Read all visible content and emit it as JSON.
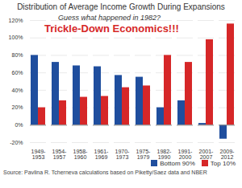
{
  "chart_data": {
    "type": "bar",
    "title": "Distribution of Average Income Growth During Expansions",
    "annotations": [
      "Guess what happened in 1982?",
      "Trickle-Down Economics!!!"
    ],
    "source": "Source: Pavlina R. Tcherneva calculations based on Piketty/Saez data and NBER",
    "categories": [
      "1949-1953",
      "1954-1957",
      "1958-1960",
      "1961-1969",
      "1970-1973",
      "1975-1979",
      "1982-1990",
      "1991-2000",
      "2001-2007",
      "2009-2012"
    ],
    "series": [
      {
        "name": "Bottom 90%",
        "color": "#1f4e9e",
        "values": [
          80,
          72,
          68,
          67,
          57,
          55,
          20,
          28,
          2,
          -16
        ]
      },
      {
        "name": "Top 10%",
        "color": "#d62728",
        "values": [
          20,
          28,
          32,
          33,
          43,
          45,
          80,
          72,
          98,
          116
        ]
      }
    ],
    "ylim": [
      -20,
      120
    ],
    "yticks": [
      {
        "value": -20,
        "label": "-20%"
      },
      {
        "value": 0,
        "label": "0%"
      },
      {
        "value": 20,
        "label": "20%"
      },
      {
        "value": 40,
        "label": "40%"
      },
      {
        "value": 60,
        "label": "60%"
      },
      {
        "value": 80,
        "label": "80%"
      },
      {
        "value": 100,
        "label": "100%"
      },
      {
        "value": 120,
        "label": "120%"
      }
    ],
    "grid": true,
    "legend": "bottom"
  }
}
